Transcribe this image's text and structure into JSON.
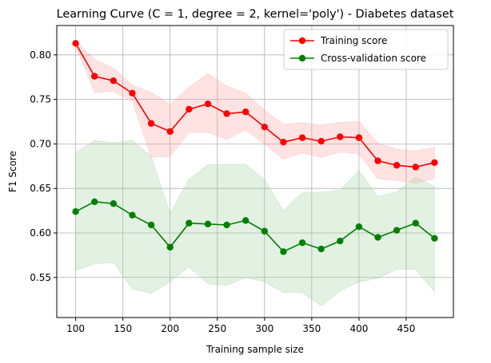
{
  "chart_data": {
    "type": "line",
    "title": "Learning Curve (C = 1, degree = 2, kernel='poly') - Diabetes dataset",
    "xlabel": "Training sample size",
    "ylabel": "F1 Score",
    "xlim": [
      80,
      500
    ],
    "ylim": [
      0.505,
      0.833
    ],
    "xticks": [
      100,
      150,
      200,
      250,
      300,
      350,
      400,
      450
    ],
    "yticks": [
      0.55,
      0.6,
      0.65,
      0.7,
      0.75,
      0.8
    ],
    "ytick_labels": [
      "0.55",
      "0.60",
      "0.65",
      "0.70",
      "0.75",
      "0.80"
    ],
    "grid": true,
    "legend_position": "top-right",
    "x": [
      100,
      120,
      140,
      160,
      180,
      200,
      220,
      240,
      260,
      280,
      300,
      320,
      340,
      360,
      380,
      400,
      420,
      440,
      460,
      480
    ],
    "series": [
      {
        "name": "Training score",
        "color": "#ff0000",
        "band_color": "#ff9999",
        "values": [
          0.813,
          0.776,
          0.771,
          0.757,
          0.723,
          0.714,
          0.739,
          0.745,
          0.734,
          0.736,
          0.719,
          0.702,
          0.707,
          0.703,
          0.708,
          0.707,
          0.681,
          0.676,
          0.674,
          0.679
        ],
        "upper": [
          0.816,
          0.795,
          0.785,
          0.766,
          0.758,
          0.744,
          0.764,
          0.779,
          0.765,
          0.757,
          0.738,
          0.722,
          0.724,
          0.721,
          0.724,
          0.725,
          0.701,
          0.694,
          0.692,
          0.696
        ],
        "lower": [
          0.81,
          0.758,
          0.759,
          0.748,
          0.685,
          0.686,
          0.713,
          0.713,
          0.705,
          0.716,
          0.7,
          0.683,
          0.69,
          0.685,
          0.691,
          0.689,
          0.661,
          0.659,
          0.656,
          0.661
        ]
      },
      {
        "name": "Cross-validation score",
        "color": "#008000",
        "band_color": "#99cc99",
        "values": [
          0.624,
          0.635,
          0.633,
          0.62,
          0.609,
          0.584,
          0.611,
          0.61,
          0.609,
          0.614,
          0.602,
          0.579,
          0.589,
          0.582,
          0.591,
          0.607,
          0.595,
          0.603,
          0.611,
          0.594
        ],
        "upper": [
          0.69,
          0.704,
          0.701,
          0.704,
          0.686,
          0.622,
          0.66,
          0.677,
          0.677,
          0.677,
          0.66,
          0.625,
          0.645,
          0.646,
          0.648,
          0.67,
          0.641,
          0.646,
          0.663,
          0.652
        ],
        "lower": [
          0.558,
          0.565,
          0.567,
          0.537,
          0.532,
          0.545,
          0.562,
          0.543,
          0.541,
          0.55,
          0.545,
          0.533,
          0.533,
          0.518,
          0.535,
          0.545,
          0.549,
          0.559,
          0.559,
          0.534
        ]
      }
    ]
  }
}
